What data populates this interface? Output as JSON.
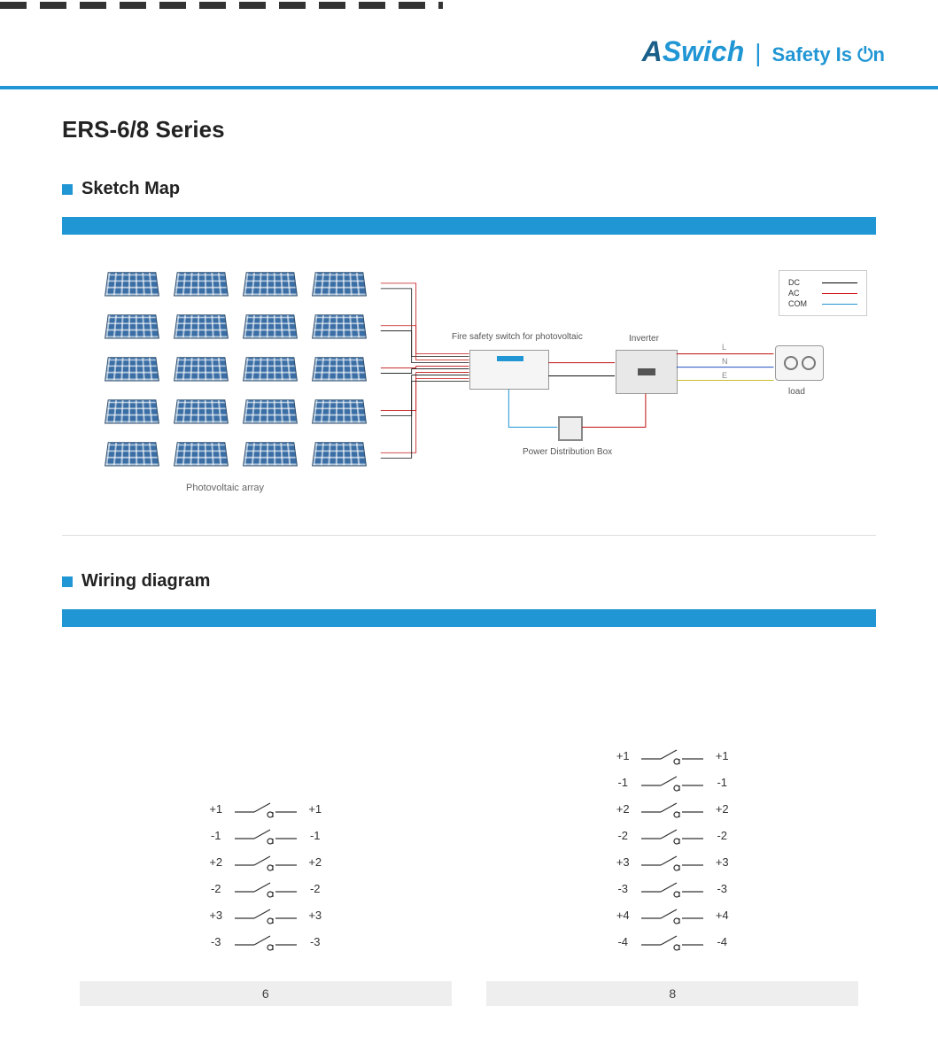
{
  "brand": {
    "name_a": "A",
    "name_rest": "Swich",
    "tagline": "Safety Is ⏻n",
    "tagline_plain": "Safety Is On"
  },
  "page": {
    "title": "ERS-6/8 Series"
  },
  "sections": {
    "sketch": {
      "title": "Sketch Map",
      "pv_rows": 5,
      "pv_cols": 4,
      "labels": {
        "pv_array": "Photovoltaic array",
        "fire_switch": "Fire safety switch for photovoltaic",
        "inverter": "Inverter",
        "pdb": "Power Distribution Box",
        "load": "load",
        "L": "L",
        "N": "N",
        "E": "E"
      },
      "legend": [
        {
          "label": "DC",
          "color": "#000000"
        },
        {
          "label": "AC",
          "color": "#d01010"
        },
        {
          "label": "COM",
          "color": "#2196d4"
        }
      ],
      "wire_colors": {
        "dc_pos": "#c01010",
        "dc_neg": "#101010",
        "ac": "#c01010",
        "com": "#2196d4",
        "L": "#c01010",
        "N": "#2050c0",
        "E": "#c8c030"
      }
    },
    "wiring": {
      "title": "Wiring diagram",
      "diagrams": [
        {
          "footer": "6",
          "rows": [
            {
              "l": "+1",
              "r": "+1"
            },
            {
              "l": "-1",
              "r": "-1"
            },
            {
              "l": "+2",
              "r": "+2"
            },
            {
              "l": "-2",
              "r": "-2"
            },
            {
              "l": "+3",
              "r": "+3"
            },
            {
              "l": "-3",
              "r": "-3"
            }
          ]
        },
        {
          "footer": "8",
          "rows": [
            {
              "l": "+1",
              "r": "+1"
            },
            {
              "l": "-1",
              "r": "-1"
            },
            {
              "l": "+2",
              "r": "+2"
            },
            {
              "l": "-2",
              "r": "-2"
            },
            {
              "l": "+3",
              "r": "+3"
            },
            {
              "l": "-3",
              "r": "-3"
            },
            {
              "l": "+4",
              "r": "+4"
            },
            {
              "l": "-4",
              "r": "-4"
            }
          ]
        }
      ],
      "switch_color": "#333333"
    }
  },
  "colors": {
    "brand_blue": "#2196d4",
    "bar_blue": "#2196d4"
  }
}
